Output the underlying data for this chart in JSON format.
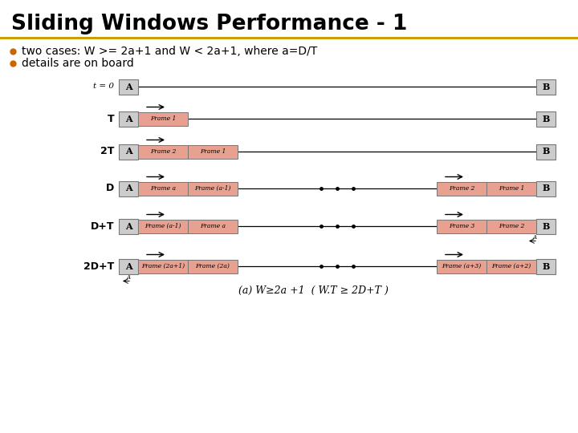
{
  "title": "Sliding Windows Performance - 1",
  "title_color": "#000000",
  "title_bar_color": "#C8A000",
  "bullet_color": "#CC6600",
  "bullet_points": [
    "two cases: W >= 2a+1 and W < 2a+1, where a=D/T",
    "details are on board"
  ],
  "bg_color": "#ffffff",
  "frame_fill": "#E8A090",
  "frame_edge": "#777777",
  "node_fill": "#CCCCCC",
  "node_edge": "#777777",
  "line_color": "#000000",
  "rows": [
    {
      "label": "t = 0",
      "label_italic": true,
      "frames_left": [],
      "frames_right": [],
      "dots": false,
      "arrow_left": false,
      "arrow_right": false,
      "small_a_left": false,
      "small_a_right": false
    },
    {
      "label": "T",
      "label_italic": false,
      "frames_left": [
        "Frame 1"
      ],
      "frames_right": [],
      "dots": false,
      "arrow_left": true,
      "arrow_right": false,
      "small_a_left": false,
      "small_a_right": false
    },
    {
      "label": "2T",
      "label_italic": false,
      "frames_left": [
        "Frame 2",
        "Frame 1"
      ],
      "frames_right": [],
      "dots": false,
      "arrow_left": true,
      "arrow_right": false,
      "small_a_left": false,
      "small_a_right": false
    },
    {
      "label": "D",
      "label_italic": false,
      "frames_left": [
        "Frame a",
        "Frame (a-1)"
      ],
      "frames_right": [
        "Frame 2",
        "Frame 1"
      ],
      "dots": true,
      "arrow_left": true,
      "arrow_right": true,
      "small_a_left": false,
      "small_a_right": false
    },
    {
      "label": "D+T",
      "label_italic": false,
      "frames_left": [
        "Frame (a-1)",
        "Frame a"
      ],
      "frames_right": [
        "Frame 3",
        "Frame 2"
      ],
      "dots": true,
      "arrow_left": true,
      "arrow_right": true,
      "small_a_left": false,
      "small_a_right": true
    },
    {
      "label": "2D+T",
      "label_italic": false,
      "frames_left": [
        "Frame (2a+1)",
        "Frame (2a)"
      ],
      "frames_right": [
        "Frame (a+3)",
        "Frame (a+2)"
      ],
      "dots": true,
      "arrow_left": true,
      "arrow_right": true,
      "small_a_left": true,
      "small_a_right": false
    }
  ],
  "caption": "(a) W≥2a +1  ( W.T ≥ 2D+T )"
}
